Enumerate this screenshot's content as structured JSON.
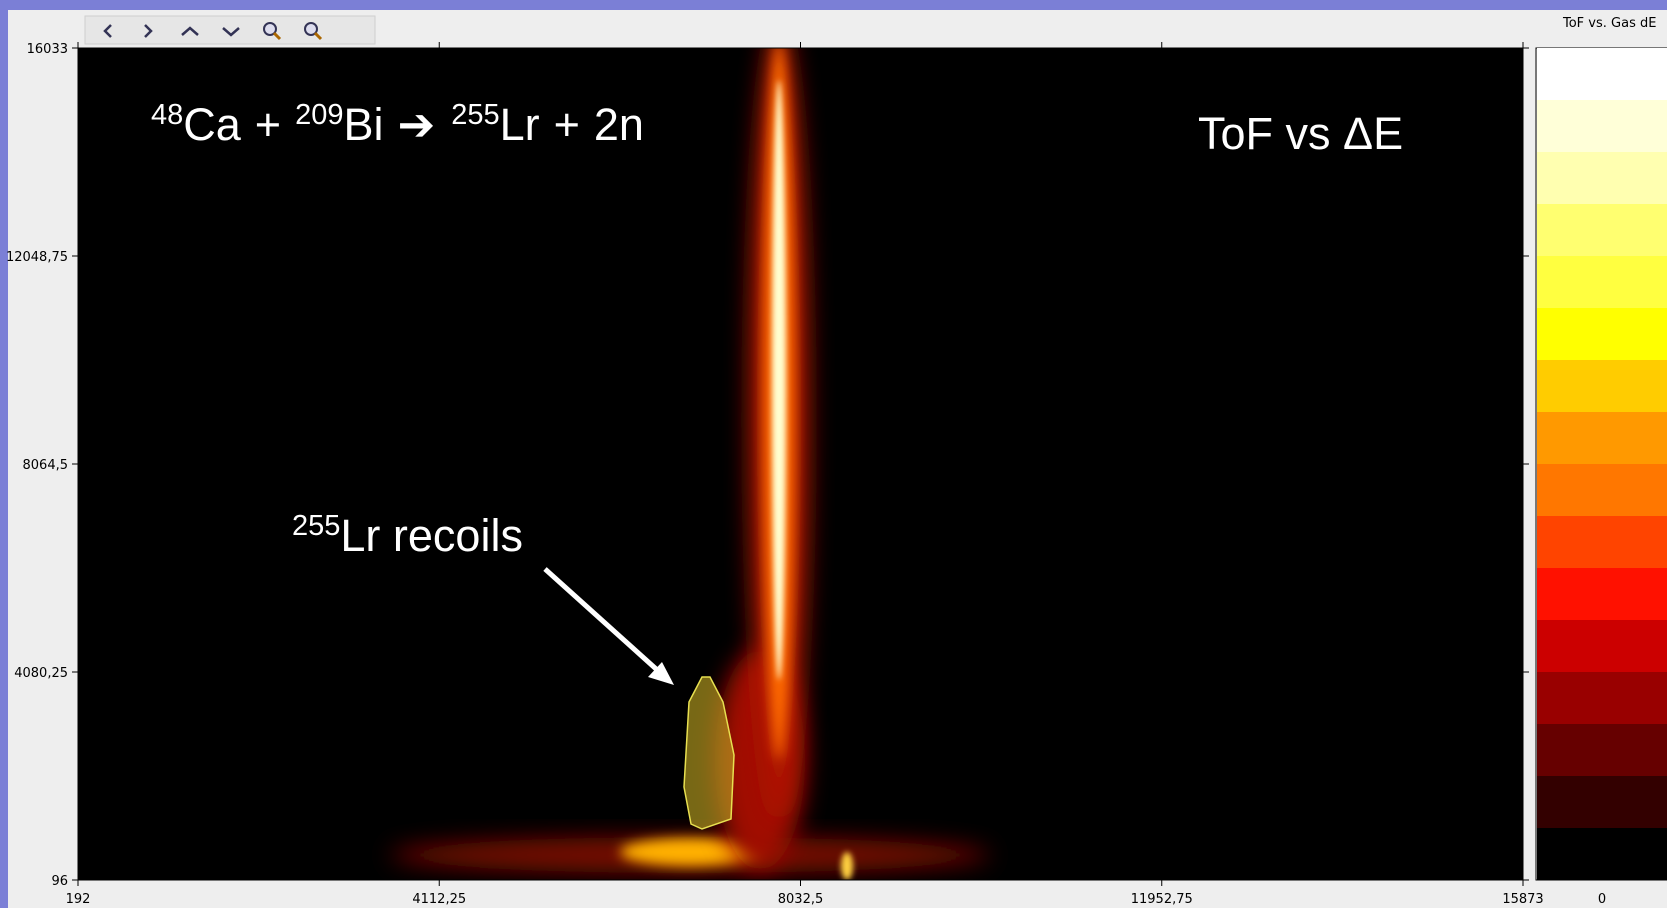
{
  "chart_data": {
    "type": "heatmap",
    "title": "ToF vs ΔE",
    "colorbar_title": "ToF vs. Gas dE",
    "colorbar_ticks": [
      0
    ],
    "colorbar_colors": [
      "#ffffff",
      "#ffffd8",
      "#ffffb0",
      "#ffff70",
      "#ffff40",
      "#ffff00",
      "#ffcc00",
      "#ff9900",
      "#ff7700",
      "#ff4400",
      "#ff1100",
      "#cc0000",
      "#990000",
      "#660000",
      "#330000",
      "#000000"
    ],
    "reaction": [
      "48",
      "Ca",
      "+",
      "209",
      "Bi",
      "➔",
      "255",
      "Lr",
      "+",
      "2n"
    ],
    "recoils_label": [
      "255",
      "Lr recoils"
    ],
    "xlim": [
      192,
      15873
    ],
    "ylim": [
      96,
      16033
    ],
    "xticks": [
      192,
      {
        "value": 4112.25,
        "label": "4112,25"
      },
      {
        "value": 8032.5,
        "label": "8032,5"
      },
      {
        "value": 11952.75,
        "label": "11952,75"
      },
      15873
    ],
    "yticks": [
      96,
      {
        "value": 4080.25,
        "label": "4080,25"
      },
      {
        "value": 8064.5,
        "label": "8064,5"
      },
      {
        "value": 12048.75,
        "label": "12048,75"
      },
      16033
    ]
  }
}
